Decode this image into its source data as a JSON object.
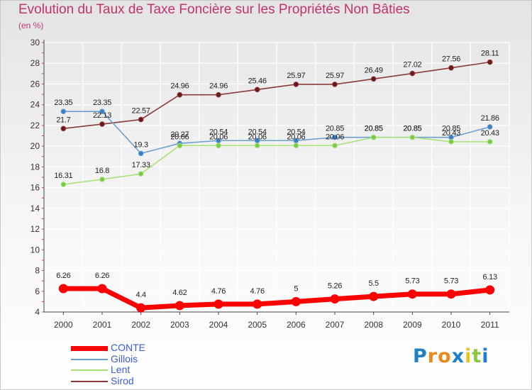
{
  "title": "Evolution du Taux de Taxe Foncière sur les Propriétés Non Bâties",
  "unit_label": "(en %)",
  "logo": {
    "letters": [
      "P",
      "r",
      "o",
      "x",
      "i",
      "t",
      "i"
    ],
    "colors": [
      "#1f7fc9",
      "#e98a1b",
      "#e98a1b",
      "#1f7fc9",
      "#e6c21a",
      "#8cc63f",
      "#1f7fc9"
    ]
  },
  "chart_data": {
    "type": "line",
    "title": "Evolution du Taux de Taxe Foncière sur les Propriétés Non Bâties",
    "ylabel": "(en %)",
    "xlabel": "",
    "x": [
      "2000",
      "2001",
      "2002",
      "2003",
      "2004",
      "2005",
      "2006",
      "2007",
      "2008",
      "2009",
      "2010",
      "2011"
    ],
    "ylim": [
      4,
      30
    ],
    "yticks": [
      4,
      6,
      8,
      10,
      12,
      14,
      16,
      18,
      20,
      22,
      24,
      26,
      28,
      30
    ],
    "grid": true,
    "legend_position": "bottom-left",
    "series": [
      {
        "name": "CONTE",
        "color": "#ff0000",
        "values": [
          6.26,
          6.26,
          4.4,
          4.62,
          4.76,
          4.76,
          5,
          5.26,
          5.5,
          5.73,
          5.73,
          6.13
        ],
        "labels": [
          "6.26",
          "6.26",
          "4.4",
          "4.62",
          "4.76",
          "4.76",
          "5",
          "5.26",
          "5.5",
          "5.73",
          "5.73",
          "6.13"
        ]
      },
      {
        "name": "Gillois",
        "color": "#6a9fd0",
        "marker": "#3a7fc4",
        "values": [
          23.35,
          23.35,
          19.3,
          20.27,
          20.54,
          20.54,
          20.54,
          20.85,
          20.85,
          20.85,
          20.85,
          21.86
        ],
        "labels": [
          "23.35",
          "23.35",
          "19.3",
          "20.27",
          "20.54",
          "20.54",
          "20.54",
          "20.85",
          "20.85",
          "20.85",
          "20.85",
          "21.86"
        ]
      },
      {
        "name": "Lent",
        "color": "#a8e27a",
        "marker": "#7ac943",
        "values": [
          16.31,
          16.8,
          17.33,
          20.06,
          20.06,
          20.06,
          20.06,
          20.06,
          20.85,
          20.85,
          20.43,
          20.43
        ],
        "labels": [
          "16.31",
          "16.8",
          "17.33",
          "20.06",
          "20.06",
          "20.06",
          "20.06",
          "20.06",
          "20.85",
          "20.85",
          "20.43",
          "20.43"
        ]
      },
      {
        "name": "Sirod",
        "color": "#8a3a3a",
        "marker": "#6a1a1a",
        "values": [
          21.7,
          22.13,
          22.57,
          24.96,
          24.96,
          25.46,
          25.97,
          25.97,
          26.49,
          27.02,
          27.56,
          28.11
        ],
        "labels": [
          "21.7",
          "22.13",
          "22.57",
          "24.96",
          "24.96",
          "25.46",
          "25.97",
          "25.97",
          "26.49",
          "27.02",
          "27.56",
          "28.11"
        ]
      }
    ]
  }
}
